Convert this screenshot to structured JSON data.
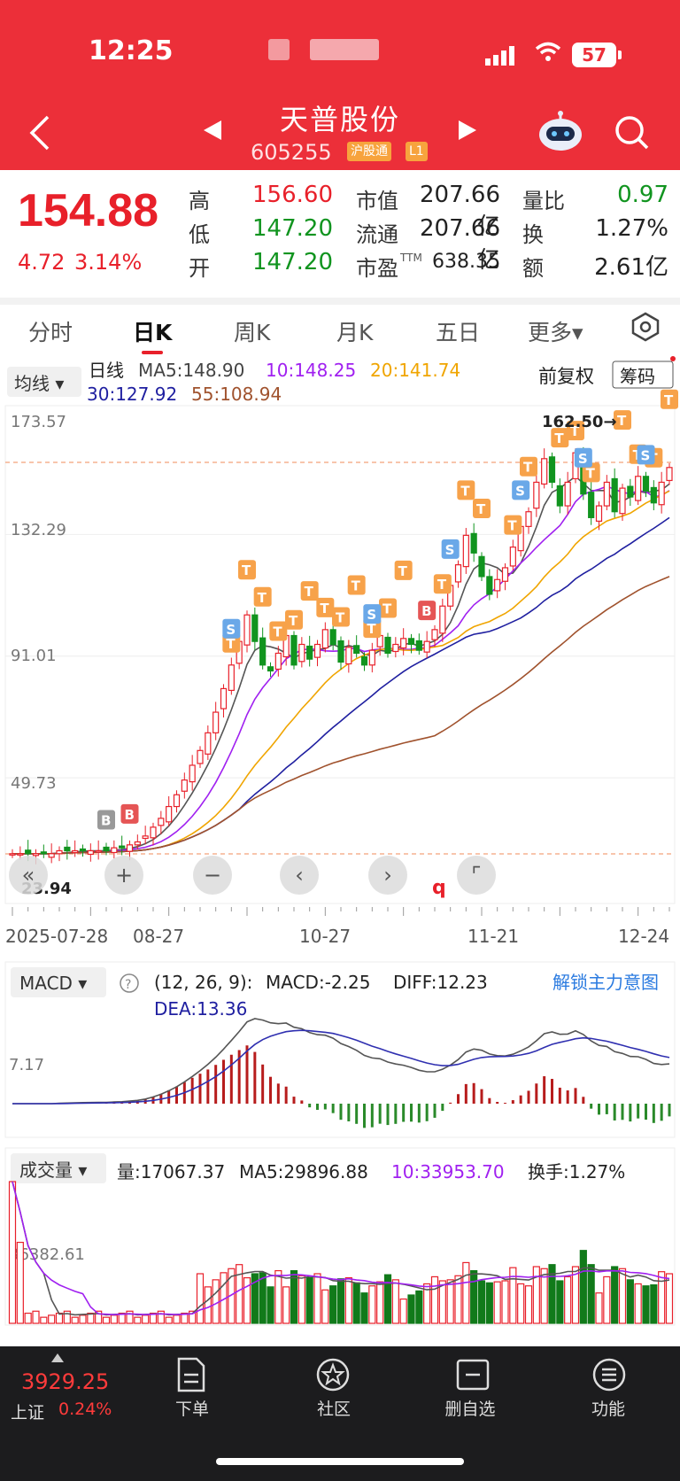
{
  "status_bar": {
    "time": "12:25",
    "battery": "57"
  },
  "header": {
    "title": "天普股份",
    "code": "605255",
    "tag1": "沪股通",
    "tag2": "L1",
    "prev_icon": "triangle-left-icon",
    "next_icon": "triangle-right-icon"
  },
  "quote": {
    "price": "154.88",
    "change": "4.72",
    "change_pct": "3.14%",
    "high_label": "高",
    "high": "156.60",
    "low_label": "低",
    "low": "147.20",
    "open_label": "开",
    "open": "147.20",
    "mktcap_label": "市值",
    "mktcap": "207.66亿",
    "float_label": "流通",
    "float": "207.66亿",
    "pe_label": "市盈",
    "pe_sup": "TTM",
    "pe": "638.35",
    "volratio_label": "量比",
    "volratio": "0.97",
    "turnover_label": "换",
    "turnover": "1.27%",
    "amount_label": "额",
    "amount": "2.61亿"
  },
  "tabs": [
    "分时",
    "日K",
    "周K",
    "月K",
    "五日",
    "更多▾"
  ],
  "kline": {
    "ma_selector": "均线 ▾",
    "line_type": "日线",
    "ma5": "MA5:148.90",
    "ma10": "10:148.25",
    "ma20": "20:141.74",
    "ma30": "30:127.92",
    "ma55": "55:108.94",
    "adjust": "前复权",
    "chips": "筹码",
    "y_ticks": [
      "173.57",
      "132.29",
      "91.01",
      "49.73"
    ],
    "max_label": "162.50→",
    "min_label": "23.94",
    "x_ticks": [
      "2025-07-28",
      "08-27",
      "10-27",
      "11-21",
      "12-24"
    ]
  },
  "macd": {
    "selector": "MACD ▾",
    "params": "(12, 26, 9):",
    "macd": "MACD:-2.25",
    "diff": "DIFF:12.23",
    "dea": "DEA:13.36",
    "unlock": "解锁主力意图",
    "y_tick": "7.17"
  },
  "volume": {
    "selector": "成交量 ▾",
    "vol": "量:17067.37",
    "ma5": "MA5:29896.88",
    "ma10": "10:33953.70",
    "turnover": "换手:1.27%",
    "y_tick": "36382.61"
  },
  "bottom_nav": {
    "index_value": "3929.25",
    "index_name": "上证",
    "index_pct": "0.24%",
    "items": [
      "下单",
      "社区",
      "删自选",
      "功能"
    ]
  },
  "chart_data": {
    "type": "candlestick",
    "ylim": [
      23.94,
      173.57
    ],
    "x_ticks": [
      "2025-07-28",
      "08-27",
      "10-27",
      "11-21",
      "12-24"
    ],
    "closes": [
      24,
      24,
      24,
      24,
      24,
      24,
      25,
      25,
      25,
      25,
      25,
      25,
      25,
      26,
      26,
      27,
      28,
      30,
      33,
      36,
      40,
      44,
      49,
      54,
      59,
      65,
      72,
      80,
      88,
      96,
      105,
      96,
      88,
      86,
      92,
      98,
      88,
      95,
      90,
      95,
      100,
      95,
      89,
      94,
      92,
      88,
      93,
      98,
      92,
      95,
      97,
      95,
      93,
      96,
      100,
      108,
      115,
      122,
      132,
      126,
      118,
      112,
      117,
      121,
      128,
      135,
      140,
      150,
      158,
      150,
      142,
      150,
      160,
      146,
      138,
      142,
      150,
      140,
      148,
      145,
      152,
      147,
      143,
      150,
      155
    ]
  }
}
